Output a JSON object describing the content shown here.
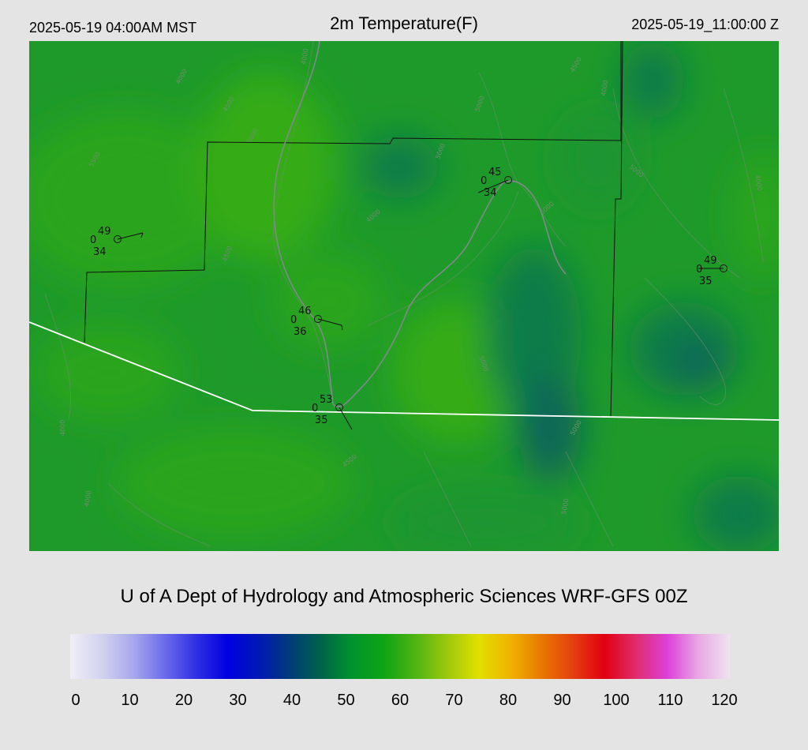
{
  "header": {
    "valid_local": "2025-05-19 04:00AM MST",
    "title": "2m Temperature(F)",
    "valid_utc": "2025-05-19_11:00:00 Z"
  },
  "credit": "U of A Dept of Hydrology and Atmospheric Sciences WRF-GFS 00Z",
  "colorbar": {
    "ticks": [
      "0",
      "10",
      "20",
      "30",
      "40",
      "50",
      "60",
      "70",
      "80",
      "90",
      "100",
      "110",
      "120"
    ],
    "colors": [
      "#f0eef6",
      "#d2d2ef",
      "#a8a8ec",
      "#6c6cec",
      "#3030e4",
      "#0000e0",
      "#0018b4",
      "#003c78",
      "#006448",
      "#00942c",
      "#10a414",
      "#50b414",
      "#9cc80c",
      "#e0e000",
      "#f0b400",
      "#e87800",
      "#e44010",
      "#e00010",
      "#e02c6c",
      "#dc40d8",
      "#e8a8e4",
      "#efe4ef"
    ]
  },
  "map": {
    "field_colors": {
      "warm": "#2ea814",
      "mid": "#1e9a2a",
      "cool": "#0d7c48",
      "cold": "#086658"
    },
    "contour_labels": [
      {
        "text": "4000"
      },
      {
        "text": "4500"
      },
      {
        "text": "5000"
      },
      {
        "text": "5500"
      },
      {
        "text": "4000"
      },
      {
        "text": "5000"
      },
      {
        "text": "5000"
      },
      {
        "text": "4000"
      },
      {
        "text": "5000"
      },
      {
        "text": "4500"
      },
      {
        "text": "4000"
      },
      {
        "text": "5000"
      },
      {
        "text": "4000"
      },
      {
        "text": "4500"
      },
      {
        "text": "5000"
      },
      {
        "text": "4000"
      },
      {
        "text": "5000"
      },
      {
        "text": "4500"
      },
      {
        "text": "4000"
      },
      {
        "text": "5000"
      }
    ],
    "stations": [
      {
        "temp": "49",
        "dew": "34",
        "cover": "0"
      },
      {
        "temp": "45",
        "dew": "34",
        "cover": "0"
      },
      {
        "temp": "46",
        "dew": "36",
        "cover": "0"
      },
      {
        "temp": "53",
        "dew": "35",
        "cover": "0"
      },
      {
        "temp": "49",
        "dew": "35",
        "cover": "0"
      }
    ]
  }
}
